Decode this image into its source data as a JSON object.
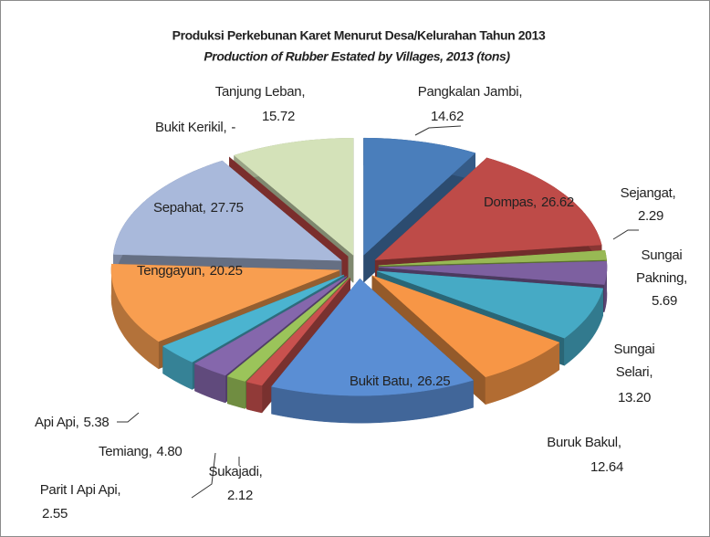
{
  "chart_data": {
    "type": "pie3d",
    "title": "Produksi Perkebunan Karet Menurut Desa/Kelurahan Tahun 2013",
    "subtitle": "Production of Rubber Estated by Villages, 2013 (tons)",
    "categories": [
      "Pangkalan Jambi,",
      "Dompas,",
      "Sejangat,",
      "Sungai Pakning,",
      "Sungai Selari,",
      "Buruk Bakul,",
      "Bukit Batu,",
      "Sukajadi,",
      "Parit I Api Api,",
      "Temiang,",
      "Api Api,",
      "Tenggayun,",
      "Sepahat,",
      "Bukit Kerikil,",
      "Tanjung Leban,"
    ],
    "values": [
      14.62,
      26.62,
      2.29,
      5.69,
      13.2,
      12.64,
      26.25,
      2.12,
      2.55,
      4.8,
      5.38,
      20.25,
      27.75,
      null,
      15.72
    ],
    "value_labels": [
      "14.62",
      "26.62",
      "2.29",
      "5.69",
      "13.20",
      "12.64",
      "26.25",
      "2.12",
      "2.55",
      "4.80",
      "5.38",
      "20.25",
      "27.75",
      "-",
      "15.72"
    ],
    "colors": [
      "#4A7EBB",
      "#BE4B48",
      "#98B954",
      "#7D60A0",
      "#46AAC5",
      "#F79646",
      "#5A8ED4",
      "#C9514E",
      "#9BC45A",
      "#8567AC",
      "#4BB4D0",
      "#F89E50",
      "#A9B9DB",
      "#7A2E2C",
      "#D4E2B9"
    ]
  }
}
